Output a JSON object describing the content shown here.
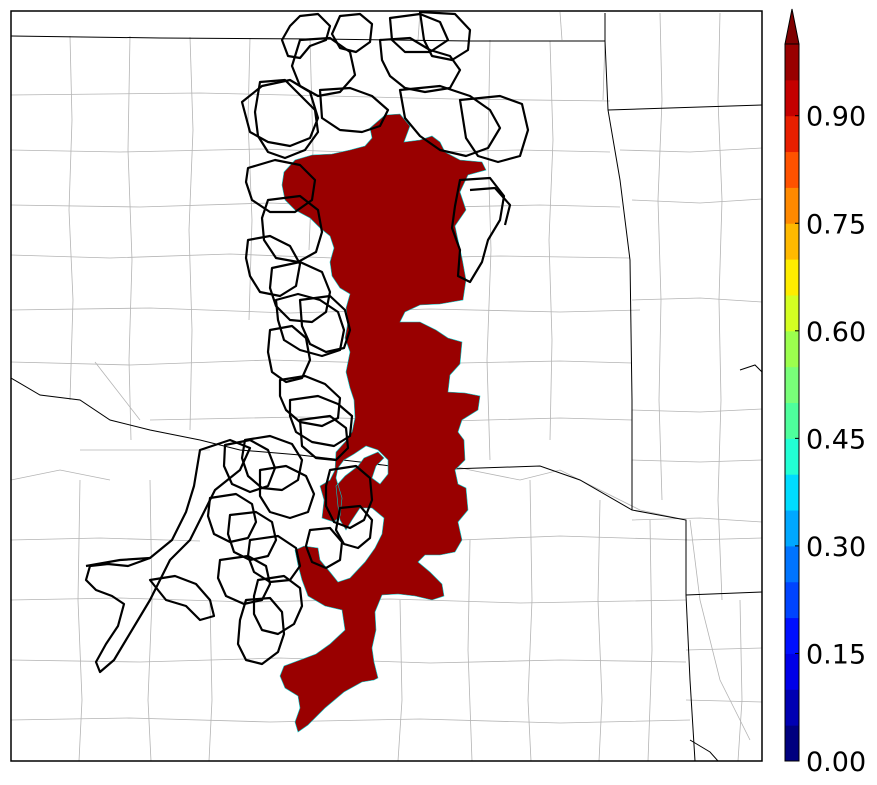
{
  "figure": {
    "map": {
      "background_color": "#ffffff",
      "county_line_color": "#b4b4b4",
      "state_line_color": "#000000",
      "probability_fill_color": "#990000",
      "contour_line_color": "#000000"
    },
    "colorbar": {
      "ticks": [
        {
          "value": 0.0,
          "label": "0.00"
        },
        {
          "value": 0.15,
          "label": "0.15"
        },
        {
          "value": 0.3,
          "label": "0.30"
        },
        {
          "value": 0.45,
          "label": "0.45"
        },
        {
          "value": 0.6,
          "label": "0.60"
        },
        {
          "value": 0.75,
          "label": "0.75"
        },
        {
          "value": 0.9,
          "label": "0.90"
        }
      ],
      "range": [
        0.0,
        1.0
      ],
      "extend": "max",
      "colors": [
        "#00007f",
        "#0000b2",
        "#0000e8",
        "#0010ff",
        "#0044ff",
        "#0074ff",
        "#00a8ff",
        "#00dcfe",
        "#22ffd4",
        "#4eff9c",
        "#79ff79",
        "#9cff4e",
        "#d4ff22",
        "#feed00",
        "#ffb900",
        "#ff8900",
        "#ff5200",
        "#e81f00",
        "#c40000",
        "#990000"
      ],
      "extend_color": "#7f0000"
    }
  }
}
